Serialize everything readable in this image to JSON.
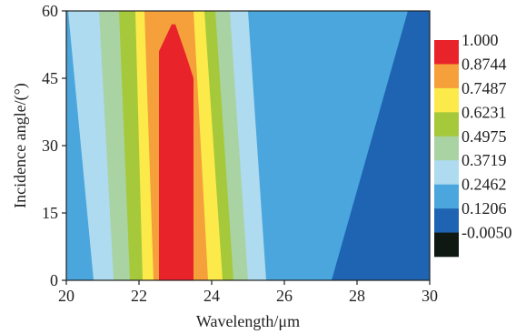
{
  "chart_data": {
    "type": "heatmap",
    "title": "",
    "xlabel": "Wavelength/μm",
    "ylabel": "Incidence angle/(°)",
    "xlim": [
      20,
      30
    ],
    "ylim": [
      0,
      60
    ],
    "xticks": [
      "20",
      "22",
      "24",
      "26",
      "28",
      "30"
    ],
    "yticks": [
      "0",
      "15",
      "30",
      "45",
      "60"
    ],
    "grid": false,
    "legend_position": "right",
    "colorbar": {
      "levels": [
        "1.000",
        "0.8744",
        "0.7487",
        "0.6231",
        "0.4975",
        "0.3719",
        "0.2462",
        "0.1206",
        "-0.0050"
      ],
      "colors": [
        "#e8232a",
        "#f5a03a",
        "#fbea4a",
        "#a5c93a",
        "#a9d3a3",
        "#aedbf0",
        "#4aa6dc",
        "#1e64b3",
        "#0f1812"
      ]
    },
    "contour_bands": [
      {
        "level": "0.2462",
        "color": "#4aa6dc",
        "x_range_at_angle_0": [
          20.0,
          27.3
        ],
        "x_range_at_angle_60": [
          20.0,
          29.4
        ]
      },
      {
        "level": "0.3719",
        "color": "#aedbf0",
        "x_range_at_angle_0": [
          20.75,
          25.5
        ],
        "x_range_at_angle_60": [
          20.05,
          25.0
        ]
      },
      {
        "level": "0.4975",
        "color": "#a9d3a3",
        "x_range_at_angle_0": [
          21.3,
          25.0
        ],
        "x_range_at_angle_60": [
          20.9,
          24.5
        ]
      },
      {
        "level": "0.6231",
        "color": "#a5c93a",
        "x_range_at_angle_0": [
          21.75,
          24.6
        ],
        "x_range_at_angle_60": [
          21.45,
          24.1
        ]
      },
      {
        "level": "0.7487",
        "color": "#fbea4a",
        "x_range_at_angle_0": [
          22.1,
          24.3
        ],
        "x_range_at_angle_60": [
          21.9,
          23.8
        ]
      },
      {
        "level": "0.8744",
        "color": "#f5a03a",
        "x_range_at_angle_0": [
          22.4,
          23.9
        ],
        "x_range_at_angle_60": [
          22.15,
          23.5
        ]
      },
      {
        "level": "1.000",
        "color": "#e8232a",
        "x_range_at_angle_0": [
          22.55,
          23.5
        ],
        "x_range_at_angle_peak": [
          22.9,
          23.0
        ],
        "peak_angle": 57
      }
    ]
  }
}
